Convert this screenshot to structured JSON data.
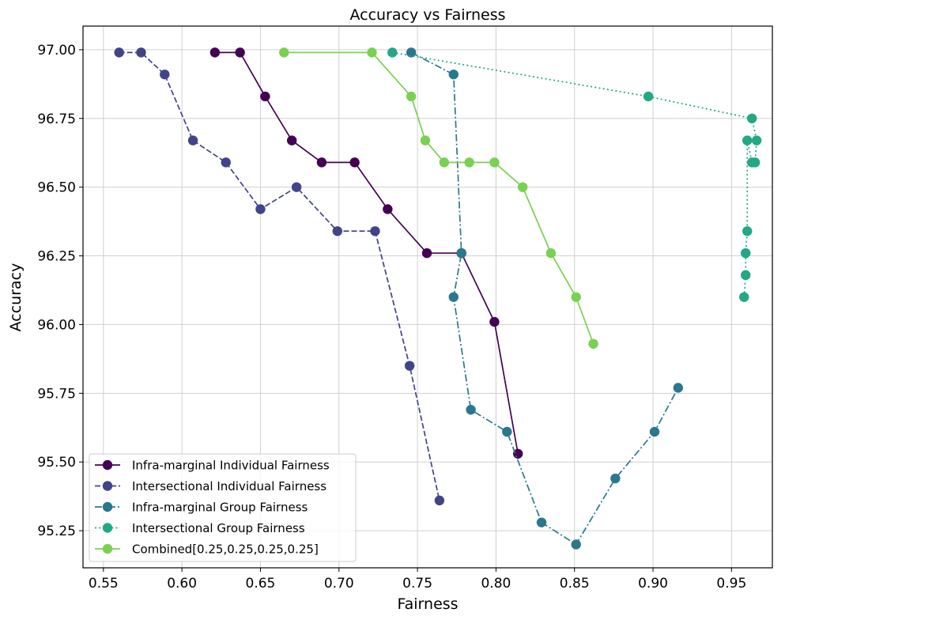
{
  "chart_data": {
    "type": "line",
    "title": "Accuracy vs Fairness",
    "xlabel": "Fairness",
    "ylabel": "Accuracy",
    "xlim": [
      0.537,
      0.976
    ],
    "ylim": [
      95.115,
      97.086
    ],
    "xticks": [
      0.55,
      0.6,
      0.65,
      0.7,
      0.75,
      0.8,
      0.85,
      0.9,
      0.95
    ],
    "xtick_labels": [
      "0.55",
      "0.60",
      "0.65",
      "0.70",
      "0.75",
      "0.80",
      "0.85",
      "0.90",
      "0.95"
    ],
    "yticks": [
      95.25,
      95.5,
      95.75,
      96.0,
      96.25,
      96.5,
      96.75,
      97.0
    ],
    "ytick_labels": [
      "95.25",
      "95.50",
      "95.75",
      "96.00",
      "96.25",
      "96.50",
      "96.75",
      "97.00"
    ],
    "grid": true,
    "legend_position": "lower-left",
    "series": [
      {
        "name": "Infra-marginal Individual Fairness",
        "color": "#440154",
        "linestyle": "solid",
        "marker": "circle",
        "x": [
          0.621,
          0.637,
          0.653,
          0.67,
          0.689,
          0.71,
          0.731,
          0.756,
          0.778,
          0.799,
          0.814
        ],
        "y": [
          96.99,
          96.99,
          96.83,
          96.67,
          96.59,
          96.59,
          96.42,
          96.26,
          96.26,
          96.01,
          95.53
        ]
      },
      {
        "name": "Intersectional Individual Fairness",
        "color": "#414487",
        "linestyle": "dashed",
        "marker": "circle",
        "x": [
          0.56,
          0.574,
          0.589,
          0.607,
          0.628,
          0.65,
          0.673,
          0.699,
          0.723,
          0.745,
          0.764
        ],
        "y": [
          96.99,
          96.99,
          96.91,
          96.67,
          96.59,
          96.42,
          96.5,
          96.34,
          96.34,
          95.85,
          95.36
        ]
      },
      {
        "name": "Infra-marginal Group Fairness",
        "color": "#2a788e",
        "linestyle": "dashdot",
        "marker": "circle",
        "x": [
          0.746,
          0.773,
          0.778,
          0.773,
          0.784,
          0.807,
          0.829,
          0.851,
          0.876,
          0.901,
          0.916
        ],
        "y": [
          96.99,
          96.91,
          96.26,
          96.1,
          95.69,
          95.61,
          95.28,
          95.2,
          95.44,
          95.61,
          95.77
        ]
      },
      {
        "name": "Intersectional Group Fairness",
        "color": "#22a884",
        "linestyle": "dotted",
        "marker": "circle",
        "x": [
          0.734,
          0.897,
          0.963,
          0.966,
          0.965,
          0.963,
          0.96,
          0.96,
          0.959,
          0.959,
          0.958
        ],
        "y": [
          96.99,
          96.83,
          96.75,
          96.67,
          96.59,
          96.59,
          96.67,
          96.34,
          96.26,
          96.18,
          96.1
        ]
      },
      {
        "name": "Combined[0.25,0.25,0.25,0.25]",
        "color": "#7ad151",
        "linestyle": "solid",
        "marker": "circle",
        "x": [
          0.665,
          0.721,
          0.746,
          0.755,
          0.767,
          0.783,
          0.799,
          0.817,
          0.835,
          0.851,
          0.862
        ],
        "y": [
          96.99,
          96.99,
          96.83,
          96.67,
          96.59,
          96.59,
          96.59,
          96.5,
          96.26,
          96.1,
          95.93
        ]
      }
    ]
  }
}
